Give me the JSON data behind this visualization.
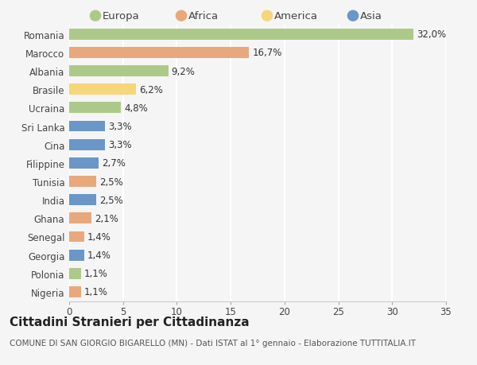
{
  "countries": [
    "Romania",
    "Marocco",
    "Albania",
    "Brasile",
    "Ucraina",
    "Sri Lanka",
    "Cina",
    "Filippine",
    "Tunisia",
    "India",
    "Ghana",
    "Senegal",
    "Georgia",
    "Polonia",
    "Nigeria"
  ],
  "values": [
    32.0,
    16.7,
    9.2,
    6.2,
    4.8,
    3.3,
    3.3,
    2.7,
    2.5,
    2.5,
    2.1,
    1.4,
    1.4,
    1.1,
    1.1
  ],
  "labels": [
    "32,0%",
    "16,7%",
    "9,2%",
    "6,2%",
    "4,8%",
    "3,3%",
    "3,3%",
    "2,7%",
    "2,5%",
    "2,5%",
    "2,1%",
    "1,4%",
    "1,4%",
    "1,1%",
    "1,1%"
  ],
  "continents": [
    "Europa",
    "Africa",
    "Europa",
    "America",
    "Europa",
    "Asia",
    "Asia",
    "Asia",
    "Africa",
    "Asia",
    "Africa",
    "Africa",
    "Asia",
    "Europa",
    "Africa"
  ],
  "colors": {
    "Europa": "#adc98a",
    "Africa": "#e8a87c",
    "America": "#f5d67a",
    "Asia": "#6a96c8"
  },
  "legend_order": [
    "Europa",
    "Africa",
    "America",
    "Asia"
  ],
  "xlim": [
    0,
    35
  ],
  "xticks": [
    0,
    5,
    10,
    15,
    20,
    25,
    30,
    35
  ],
  "title": "Cittadini Stranieri per Cittadinanza",
  "subtitle": "COMUNE DI SAN GIORGIO BIGARELLO (MN) - Dati ISTAT al 1° gennaio - Elaborazione TUTTITALIA.IT",
  "background_color": "#f5f5f5",
  "grid_color": "#ffffff",
  "bar_height": 0.6,
  "label_fontsize": 8.5,
  "tick_fontsize": 8.5,
  "title_fontsize": 11,
  "subtitle_fontsize": 7.5
}
